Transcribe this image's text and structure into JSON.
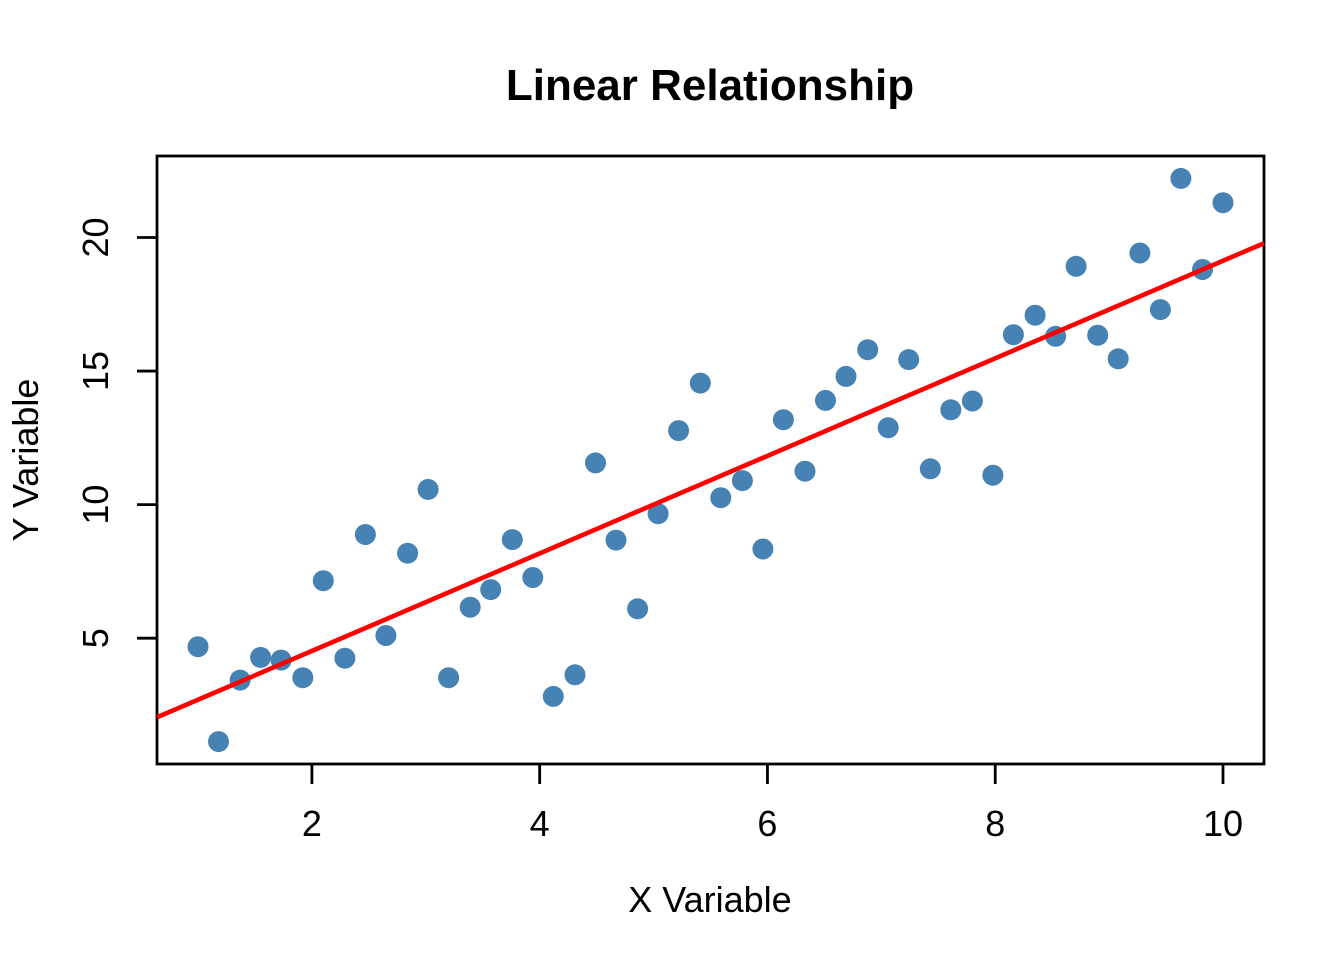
{
  "chart_data": {
    "type": "scatter",
    "title": "Linear Relationship",
    "xlabel": "X Variable",
    "ylabel": "Y Variable",
    "xlim": [
      0.64,
      10.36
    ],
    "ylim": [
      0.29,
      23.05
    ],
    "x_ticks": [
      2,
      4,
      6,
      8,
      10
    ],
    "y_ticks": [
      5,
      10,
      15,
      20
    ],
    "grid": false,
    "legend": "none",
    "colors": {
      "point": "#4682B4",
      "regression_line": "#FF0000",
      "axis": "#000000",
      "background": "#FFFFFF",
      "text": "#000000"
    },
    "series": [
      {
        "name": "observations",
        "type": "scatter",
        "color": "#4682B4",
        "x": [
          1.0,
          1.18,
          1.37,
          1.55,
          1.73,
          1.92,
          2.1,
          2.29,
          2.47,
          2.65,
          2.84,
          3.02,
          3.2,
          3.39,
          3.57,
          3.76,
          3.94,
          4.12,
          4.31,
          4.49,
          4.67,
          4.86,
          5.04,
          5.22,
          5.41,
          5.59,
          5.78,
          5.96,
          6.14,
          6.33,
          6.51,
          6.69,
          6.88,
          7.06,
          7.24,
          7.43,
          7.61,
          7.8,
          7.98,
          8.16,
          8.35,
          8.53,
          8.71,
          8.9,
          9.08,
          9.27,
          9.45,
          9.63,
          9.82,
          10.0
        ],
        "y": [
          4.68,
          1.13,
          3.43,
          4.28,
          4.18,
          3.52,
          7.15,
          4.25,
          8.88,
          5.1,
          8.18,
          10.57,
          3.52,
          6.16,
          6.82,
          8.69,
          7.27,
          2.82,
          3.63,
          11.56,
          8.67,
          6.1,
          9.66,
          12.77,
          14.55,
          10.26,
          10.9,
          8.34,
          13.18,
          11.25,
          13.9,
          14.8,
          15.8,
          12.88,
          15.43,
          11.34,
          13.55,
          13.88,
          11.1,
          16.36,
          17.09,
          16.3,
          18.92,
          16.34,
          15.46,
          19.42,
          17.3,
          22.21,
          18.8,
          21.3
        ]
      },
      {
        "name": "regression-line",
        "type": "line",
        "color": "#FF0000",
        "intercept": 0.87,
        "slope": 1.826
      }
    ]
  }
}
